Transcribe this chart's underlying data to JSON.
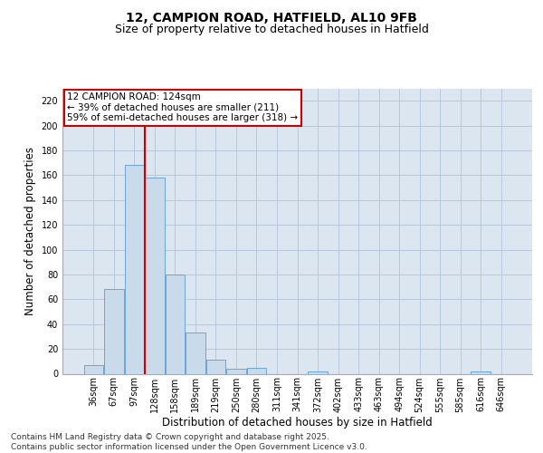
{
  "title_line1": "12, CAMPION ROAD, HATFIELD, AL10 9FB",
  "title_line2": "Size of property relative to detached houses in Hatfield",
  "xlabel": "Distribution of detached houses by size in Hatfield",
  "ylabel": "Number of detached properties",
  "categories": [
    "36sqm",
    "67sqm",
    "97sqm",
    "128sqm",
    "158sqm",
    "189sqm",
    "219sqm",
    "250sqm",
    "280sqm",
    "311sqm",
    "341sqm",
    "372sqm",
    "402sqm",
    "433sqm",
    "463sqm",
    "494sqm",
    "524sqm",
    "555sqm",
    "585sqm",
    "616sqm",
    "646sqm"
  ],
  "values": [
    7,
    68,
    168,
    158,
    80,
    33,
    11,
    4,
    5,
    0,
    0,
    2,
    0,
    0,
    0,
    0,
    0,
    0,
    0,
    2,
    0
  ],
  "bar_color": "#c9daea",
  "bar_edge_color": "#5b9bd5",
  "grid_color": "#b8c8dc",
  "background_color": "#dce6f0",
  "annotation_line1": "12 CAMPION ROAD: 124sqm",
  "annotation_line2": "← 39% of detached houses are smaller (211)",
  "annotation_line3": "59% of semi-detached houses are larger (318) →",
  "annotation_box_color": "#cc0000",
  "vline_color": "#cc0000",
  "ylim": [
    0,
    230
  ],
  "yticks": [
    0,
    20,
    40,
    60,
    80,
    100,
    120,
    140,
    160,
    180,
    200,
    220
  ],
  "footer_text": "Contains HM Land Registry data © Crown copyright and database right 2025.\nContains public sector information licensed under the Open Government Licence v3.0.",
  "title_fontsize": 10,
  "subtitle_fontsize": 9,
  "axis_label_fontsize": 8.5,
  "tick_fontsize": 7,
  "annotation_fontsize": 7.5,
  "footer_fontsize": 6.5
}
